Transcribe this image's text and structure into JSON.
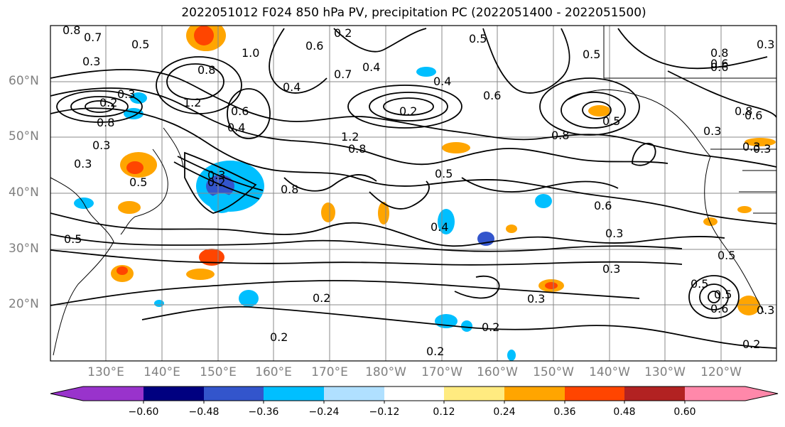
{
  "title": "2022051012 F024 850 hPa PV, precipitation PC (2022051400 - 2022051500)",
  "lat_labels": [
    "60°N",
    "50°N",
    "40°N",
    "30°N",
    "20°N"
  ],
  "lon_labels": [
    "130°E",
    "140°E",
    "150°E",
    "160°E",
    "170°E",
    "180°W",
    "170°W",
    "160°W",
    "150°W",
    "140°W",
    "130°W",
    "120°W"
  ],
  "colorbar": {
    "ticks": [
      "−0.60",
      "−0.48",
      "−0.36",
      "−0.24",
      "−0.12",
      "0.12",
      "0.24",
      "0.36",
      "0.48",
      "0.60"
    ],
    "colors": [
      "#9933cc",
      "#000080",
      "#3355cc",
      "#00bfff",
      "#b0e0ff",
      "#ffffff",
      "#ffeb80",
      "#ffa500",
      "#ff4500",
      "#b22222",
      "#ff88aa"
    ]
  },
  "contour_labels": [
    "0.8",
    "0.7",
    "0.5",
    "0.3",
    "1.0",
    "0.8",
    "0.6",
    "0.4",
    "0.3",
    "0.2",
    "0.8",
    "1.2",
    "0.6",
    "0.4",
    "0.3",
    "0.5",
    "0.5",
    "0.7",
    "0.4",
    "0.8",
    "1.2",
    "0.2",
    "0.5",
    "0.2",
    "0.3",
    "0.4",
    "0.8",
    "0.8",
    "0.5",
    "0.6",
    "0.5",
    "0.8",
    "0.6",
    "0.3",
    "0.6",
    "0.3",
    "0.5",
    "0.3",
    "0.3",
    "0.3",
    "0.4",
    "0.2",
    "0.2",
    "0.2",
    "0.3",
    "0.5",
    "0.5",
    "0.6",
    "0.3",
    "0.2",
    "0.2",
    "0.8",
    "0.6",
    "0.6",
    "0.3",
    "0.2",
    "0.5",
    "0.3"
  ]
}
